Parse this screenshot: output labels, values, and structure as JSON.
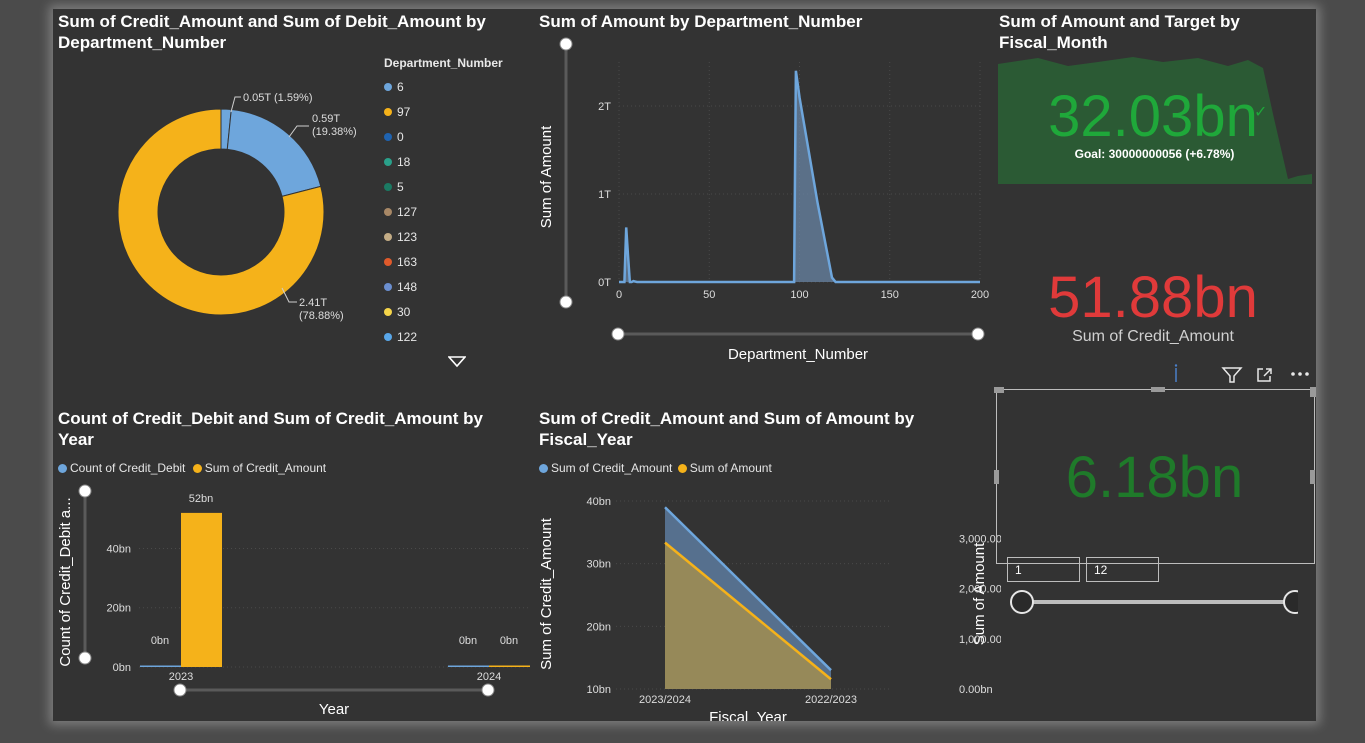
{
  "donut": {
    "title_line1": "Sum of Credit_Amount and Sum of Debit_Amount by",
    "title_line2": "Department_Number",
    "legend_title": "Department_Number",
    "legend": [
      {
        "label": "6",
        "color": "#6ea6dc"
      },
      {
        "label": "97",
        "color": "#f5b21a"
      },
      {
        "label": "0",
        "color": "#1f63b0"
      },
      {
        "label": "18",
        "color": "#2aa08a"
      },
      {
        "label": "5",
        "color": "#1b7a63"
      },
      {
        "label": "127",
        "color": "#a88866"
      },
      {
        "label": "123",
        "color": "#c4ad86"
      },
      {
        "label": "163",
        "color": "#e05a2b"
      },
      {
        "label": "148",
        "color": "#6b8fd0"
      },
      {
        "label": "30",
        "color": "#f5d54a"
      },
      {
        "label": "122",
        "color": "#59a7e9"
      }
    ],
    "labels": {
      "small": "0.05T (1.59%)",
      "blue_a": "0.59T",
      "blue_b": "(19.38%)",
      "orange_a": "2.41T",
      "orange_b": "(78.88%)"
    }
  },
  "area_dept": {
    "title": "Sum of Amount by Department_Number",
    "ylabel": "Sum of Amount",
    "xlabel": "Department_Number",
    "yticks": [
      "0T",
      "1T",
      "2T"
    ],
    "xticks": [
      "0",
      "50",
      "100",
      "150",
      "200"
    ]
  },
  "kpi_target": {
    "title_line1": "Sum of Amount and Target by",
    "title_line2": "Fiscal_Month",
    "value": "32.03bn",
    "goal": "Goal: 30000000056 (+6.78%)",
    "check": "✓"
  },
  "card_credit": {
    "value": "51.88bn",
    "label": "Sum of Credit_Amount"
  },
  "bar_year": {
    "title_line1": "Count of Credit_Debit and Sum of Credit_Amount by",
    "title_line2": "Year",
    "legend": [
      {
        "label": "Count of Credit_Debit",
        "color": "#6ea6dc"
      },
      {
        "label": "Sum of Credit_Amount",
        "color": "#f5b21a"
      }
    ],
    "ylabel": "Count of Credit_Debit a...",
    "xlabel": "Year",
    "yticks": [
      "0bn",
      "20bn",
      "40bn"
    ],
    "data_labels": {
      "y2023_count": "0bn",
      "y2023_sum": "52bn",
      "y2024_count": "0bn",
      "y2024_sum": "0bn"
    },
    "categories": [
      "2023",
      "2024"
    ]
  },
  "area_fiscal": {
    "title_line1": "Sum of Credit_Amount and Sum of Amount by",
    "title_line2": "Fiscal_Year",
    "legend": [
      {
        "label": "Sum of Credit_Amount",
        "color": "#6ea6dc"
      },
      {
        "label": "Sum of Amount",
        "color": "#f5b21a"
      }
    ],
    "ylabel_left": "Sum of Credit_Amount",
    "ylabel_right": "Sum of Amount",
    "xlabel": "Fiscal_Year",
    "yticks_left": [
      "10bn",
      "20bn",
      "30bn",
      "40bn"
    ],
    "yticks_right": [
      "0.00bn",
      "1,000.00bn",
      "2,000.00bn",
      "3,000.00bn"
    ],
    "categories": [
      "2023/2024",
      "2022/2023"
    ]
  },
  "kpi_slicer": {
    "value": "6.18bn",
    "range_start": "1",
    "range_end": "12",
    "header_icons": [
      "info-icon",
      "filter-icon",
      "focus-mode-icon",
      "more-options-icon"
    ]
  },
  "chart_data": [
    {
      "type": "pie",
      "title": "Sum of Credit_Amount and Sum of Debit_Amount by Department_Number",
      "legend_title": "Department_Number",
      "slices": [
        {
          "label": "0.05T (1.59%)",
          "value": 0.05,
          "percent": 1.59
        },
        {
          "label": "0.59T (19.38%)",
          "value": 0.59,
          "percent": 19.38
        },
        {
          "label": "2.41T (78.88%)",
          "value": 2.41,
          "percent": 78.88
        }
      ],
      "legend_position": "right"
    },
    {
      "type": "area",
      "title": "Sum of Amount by Department_Number",
      "xlabel": "Department_Number",
      "ylabel": "Sum of Amount",
      "x": [
        0,
        3,
        4,
        5,
        6,
        7,
        8,
        10,
        95,
        97,
        98,
        100,
        110,
        118,
        120,
        200
      ],
      "y": [
        0,
        0,
        0.62,
        0.3,
        0,
        0,
        0.01,
        0,
        0,
        0,
        2.4,
        2.1,
        0.9,
        0.05,
        0,
        0
      ],
      "xlim": [
        0,
        200
      ],
      "ylim": [
        0,
        2.5
      ],
      "unit": "T"
    },
    {
      "type": "bar",
      "title": "Count of Credit_Debit and Sum of Credit_Amount by Year",
      "categories": [
        "2023",
        "2024"
      ],
      "series": [
        {
          "name": "Count of Credit_Debit",
          "values": [
            0,
            0
          ]
        },
        {
          "name": "Sum of Credit_Amount",
          "values": [
            52,
            0
          ]
        }
      ],
      "xlabel": "Year",
      "ylabel": "Count of Credit_Debit a...",
      "ylim": [
        0,
        55
      ],
      "unit": "bn",
      "legend_position": "top-left"
    },
    {
      "type": "area",
      "title": "Sum of Credit_Amount and Sum of Amount by Fiscal_Year",
      "categories": [
        "2023/2024",
        "2022/2023"
      ],
      "series": [
        {
          "name": "Sum of Credit_Amount",
          "values": [
            39,
            13
          ],
          "axis": "left",
          "unit": "bn"
        },
        {
          "name": "Sum of Amount",
          "values": [
            2920,
            195
          ],
          "axis": "right",
          "unit": "bn"
        }
      ],
      "xlabel": "Fiscal_Year",
      "ylabel": "Sum of Credit_Amount",
      "ylabel_right": "Sum of Amount",
      "ylim": [
        10,
        40
      ],
      "ylim_right": [
        0,
        3750
      ],
      "legend_position": "top-left"
    }
  ]
}
